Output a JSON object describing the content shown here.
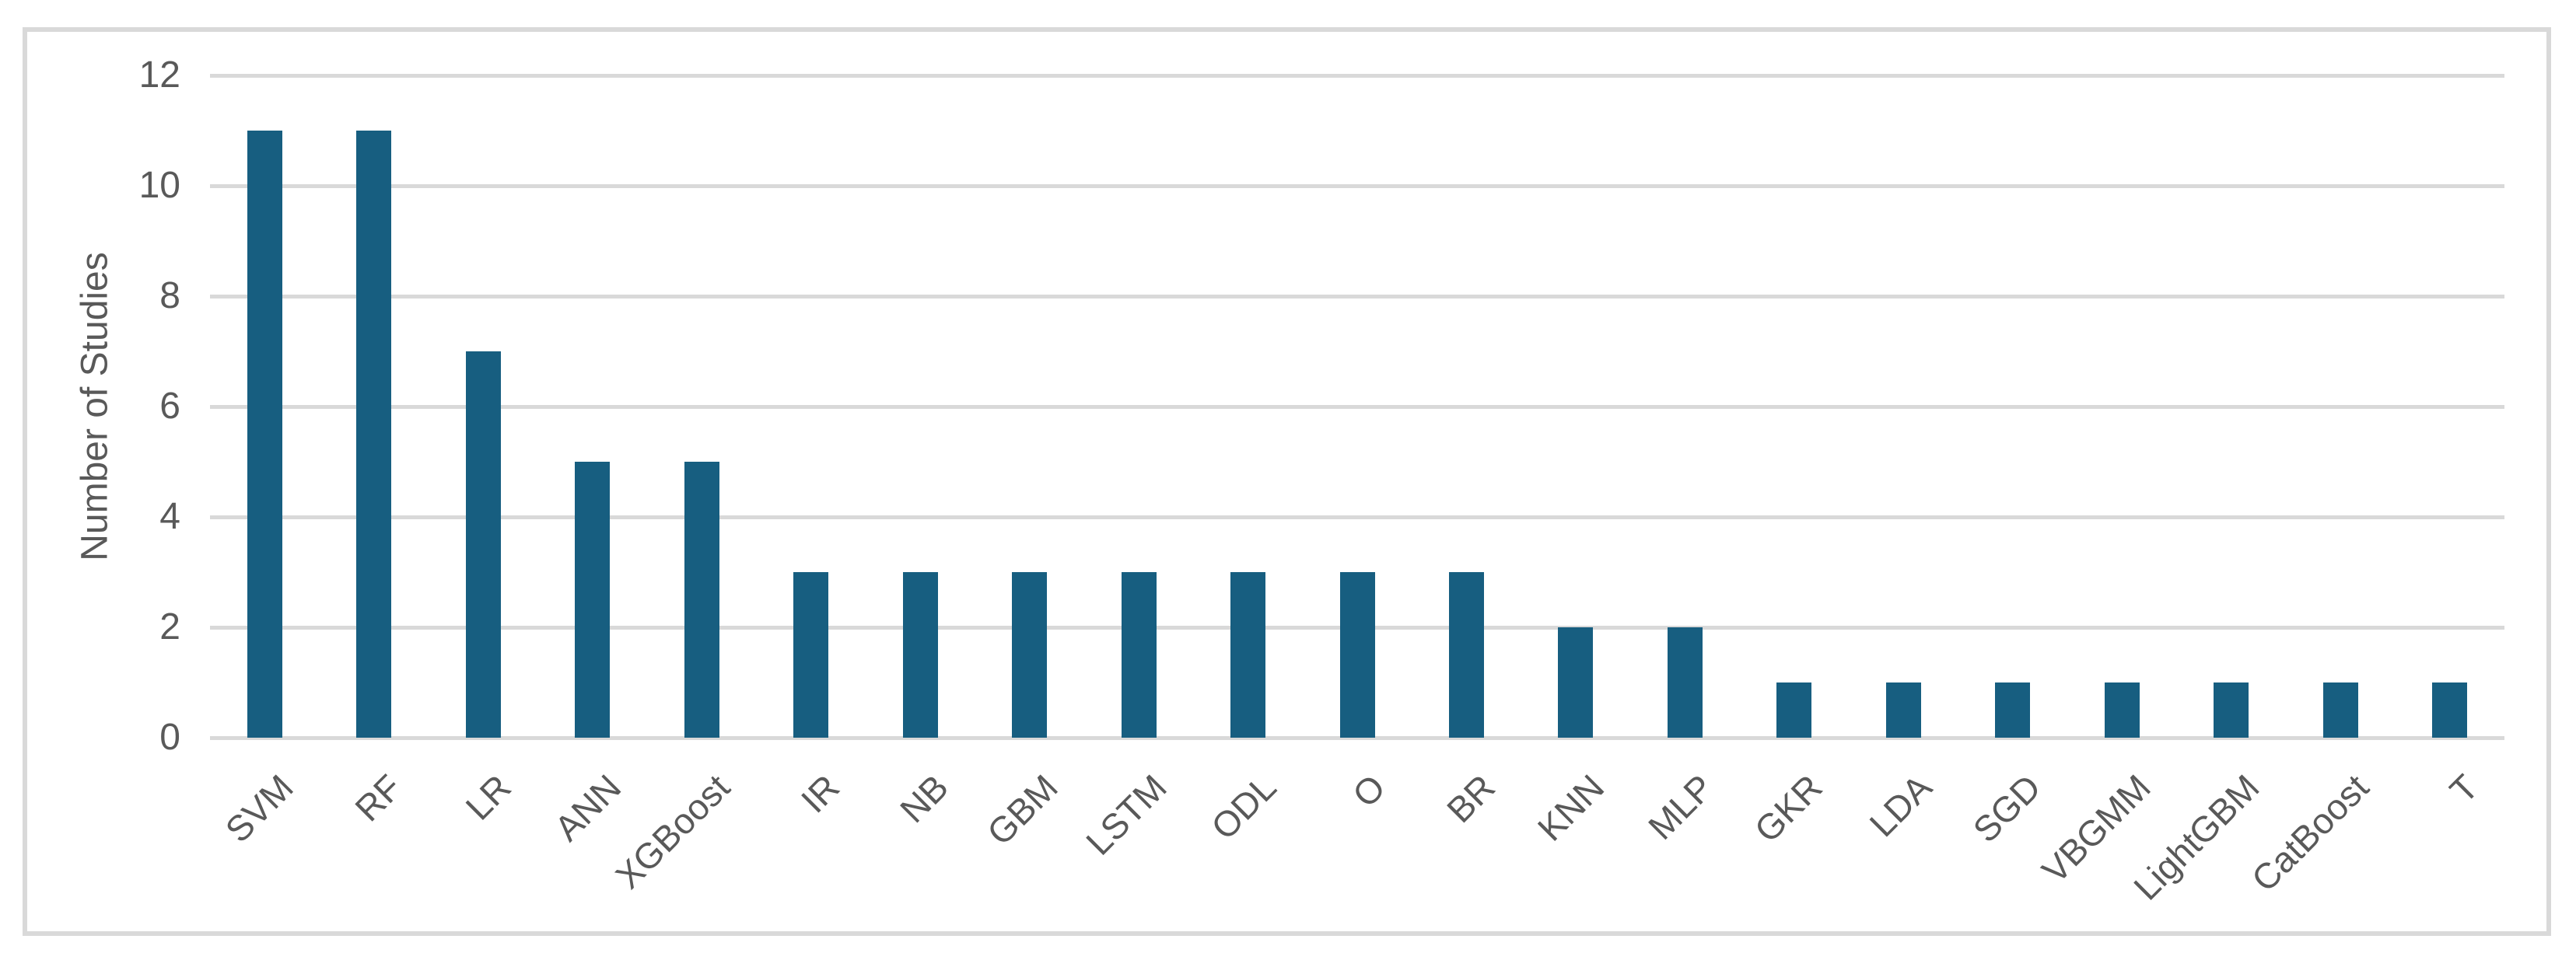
{
  "figure": {
    "background": "#FFFFFF"
  },
  "chart_data": {
    "type": "bar",
    "title": "",
    "xlabel": "",
    "ylabel": "Number of Studies",
    "categories": [
      "SVM",
      "RF",
      "LR",
      "ANN",
      "XGBoost",
      "IR",
      "NB",
      "GBM",
      "LSTM",
      "ODL",
      "O",
      "BR",
      "KNN",
      "MLP",
      "GKR",
      "LDA",
      "SGD",
      "VBGMM",
      "LightGBM",
      "CatBoost",
      "T"
    ],
    "values": [
      11,
      11,
      7,
      5,
      5,
      3,
      3,
      3,
      3,
      3,
      3,
      3,
      2,
      2,
      1,
      1,
      1,
      1,
      1,
      1,
      1
    ],
    "yticks": [
      0,
      2,
      4,
      6,
      8,
      10,
      12
    ],
    "ylim": [
      0,
      12
    ],
    "grid": "horizontal",
    "legend": "none",
    "x_label_rotation_deg": 45,
    "bar_color": "#175E80",
    "grid_color": "#D9D9D9",
    "frame_border_color": "#D9D9D9",
    "axis_text_color": "#595959"
  }
}
